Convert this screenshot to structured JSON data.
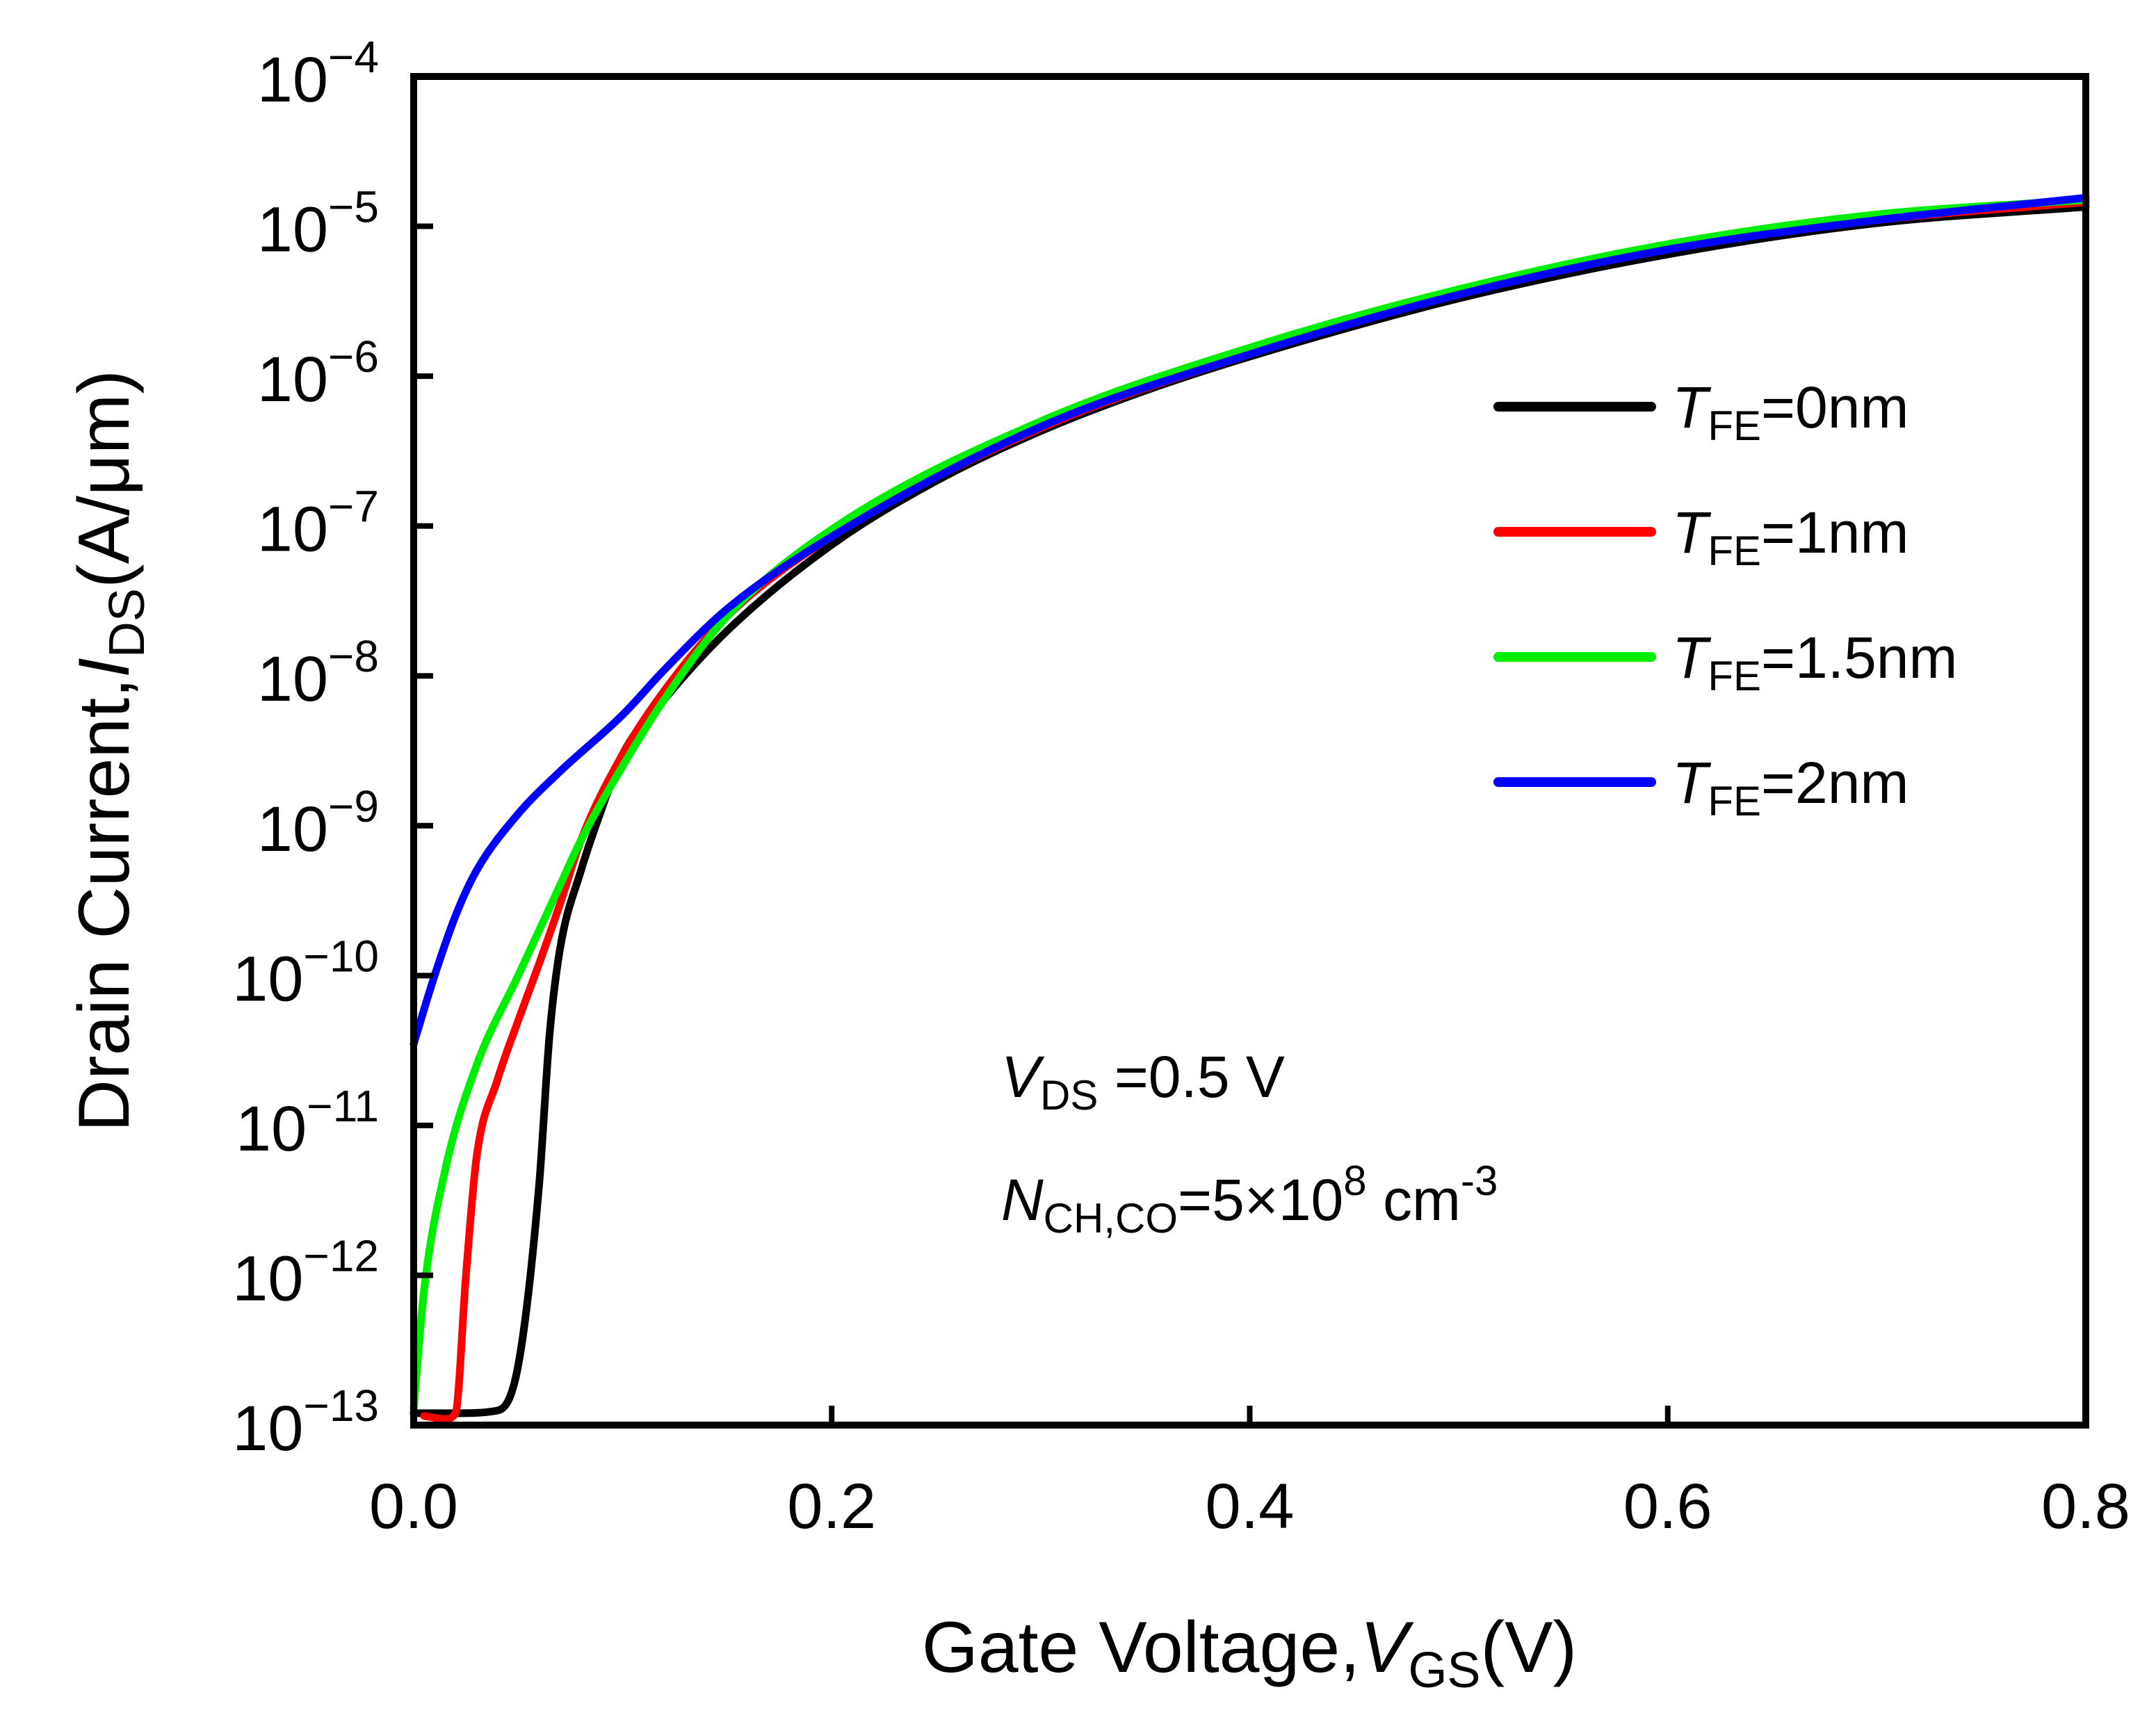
{
  "chart_data": {
    "type": "line",
    "xlabel": "Gate Voltage,",
    "xlabel_var": "V",
    "xlabel_sub": "GS",
    "xlabel_unit": "(V)",
    "ylabel": "Drain Current,",
    "ylabel_var": "I",
    "ylabel_sub": "DS",
    "ylabel_unit": "(A/μm)",
    "xlim": [
      0,
      0.8
    ],
    "ylim": [
      1e-13,
      0.0001
    ],
    "yscale": "log",
    "grid": false,
    "legend_position": "top-right",
    "x_ticks": [
      {
        "value": 0.0,
        "label": "0.0"
      },
      {
        "value": 0.2,
        "label": "0.2"
      },
      {
        "value": 0.4,
        "label": "0.4"
      },
      {
        "value": 0.6,
        "label": "0.6"
      },
      {
        "value": 0.8,
        "label": "0.8"
      }
    ],
    "y_ticks": [
      {
        "exp": -4,
        "base": "10",
        "sup": "−4"
      },
      {
        "exp": -5,
        "base": "10",
        "sup": "−5"
      },
      {
        "exp": -6,
        "base": "10",
        "sup": "−6"
      },
      {
        "exp": -7,
        "base": "10",
        "sup": "−7"
      },
      {
        "exp": -8,
        "base": "10",
        "sup": "−8"
      },
      {
        "exp": -9,
        "base": "10",
        "sup": "−9"
      },
      {
        "exp": -10,
        "base": "10",
        "sup": "−10"
      },
      {
        "exp": -11,
        "base": "10",
        "sup": "−11"
      },
      {
        "exp": -12,
        "base": "10",
        "sup": "−12"
      },
      {
        "exp": -13,
        "base": "10",
        "sup": "−13"
      }
    ],
    "series": [
      {
        "name_var": "T",
        "name_sub": "FE",
        "name_rest": "=0nm",
        "color": "#000000",
        "points": [
          [
            0.0,
            1.2e-13
          ],
          [
            0.02,
            1.2e-13
          ],
          [
            0.04,
            1.25e-13
          ],
          [
            0.05,
            2.5e-13
          ],
          [
            0.06,
            4e-12
          ],
          [
            0.065,
            4e-11
          ],
          [
            0.07,
            1.5e-10
          ],
          [
            0.08,
            5e-10
          ],
          [
            0.09,
            1.3e-09
          ],
          [
            0.1,
            3e-09
          ],
          [
            0.12,
            7e-09
          ],
          [
            0.15,
            2e-08
          ],
          [
            0.2,
            7.5e-08
          ],
          [
            0.25,
            2e-07
          ],
          [
            0.3,
            4.3e-07
          ],
          [
            0.35,
            8e-07
          ],
          [
            0.4,
            1.35e-06
          ],
          [
            0.5,
            3.3e-06
          ],
          [
            0.6,
            6.5e-06
          ],
          [
            0.7,
            1.05e-05
          ],
          [
            0.8,
            1.35e-05
          ]
        ]
      },
      {
        "name_var": "T",
        "name_sub": "FE",
        "name_rest": "=1nm",
        "color": "#ff0000",
        "points": [
          [
            0.005,
            1.15e-13
          ],
          [
            0.015,
            1.1e-13
          ],
          [
            0.02,
            1.2e-13
          ],
          [
            0.025,
            1e-12
          ],
          [
            0.03,
            6e-12
          ],
          [
            0.04,
            2e-11
          ],
          [
            0.05,
            5e-11
          ],
          [
            0.06,
            1.2e-10
          ],
          [
            0.07,
            3e-10
          ],
          [
            0.08,
            8e-10
          ],
          [
            0.1,
            3e-09
          ],
          [
            0.12,
            8e-09
          ],
          [
            0.15,
            2.5e-08
          ],
          [
            0.2,
            8.5e-08
          ],
          [
            0.3,
            4.5e-07
          ],
          [
            0.4,
            1.4e-06
          ],
          [
            0.5,
            3.5e-06
          ],
          [
            0.6,
            7e-06
          ],
          [
            0.7,
            1.1e-05
          ],
          [
            0.8,
            1.45e-05
          ]
        ]
      },
      {
        "name_var": "T",
        "name_sub": "FE",
        "name_rest": "=1.5nm",
        "color": "#00ee00",
        "points": [
          [
            0.0,
            1.3e-13
          ],
          [
            0.005,
            8e-13
          ],
          [
            0.015,
            5e-12
          ],
          [
            0.03,
            2.5e-11
          ],
          [
            0.05,
            1e-10
          ],
          [
            0.07,
            4e-10
          ],
          [
            0.08,
            8e-10
          ],
          [
            0.1,
            2.5e-09
          ],
          [
            0.12,
            7e-09
          ],
          [
            0.15,
            2.5e-08
          ],
          [
            0.2,
            9.5e-08
          ],
          [
            0.3,
            5e-07
          ],
          [
            0.4,
            1.55e-06
          ],
          [
            0.5,
            3.8e-06
          ],
          [
            0.6,
            7.6e-06
          ],
          [
            0.7,
            1.2e-05
          ],
          [
            0.8,
            1.5e-05
          ]
        ]
      },
      {
        "name_var": "T",
        "name_sub": "FE",
        "name_rest": "=2nm",
        "color": "#0000ff",
        "points": [
          [
            0.0,
            3.5e-11
          ],
          [
            0.01,
            1e-10
          ],
          [
            0.02,
            2.5e-10
          ],
          [
            0.03,
            5e-10
          ],
          [
            0.05,
            1.2e-09
          ],
          [
            0.07,
            2.3e-09
          ],
          [
            0.1,
            5.5e-09
          ],
          [
            0.12,
            1.1e-08
          ],
          [
            0.15,
            2.8e-08
          ],
          [
            0.2,
            8.5e-08
          ],
          [
            0.3,
            4.6e-07
          ],
          [
            0.4,
            1.4e-06
          ],
          [
            0.5,
            3.5e-06
          ],
          [
            0.6,
            7e-06
          ],
          [
            0.7,
            1.1e-05
          ],
          [
            0.8,
            1.55e-05
          ]
        ]
      }
    ],
    "annotations": {
      "vds_var": "V",
      "vds_sub": "DS",
      "vds_rest": " =0.5 V",
      "nch_var": "N",
      "nch_sub": "CH,CO",
      "nch_rest": "=5×10",
      "nch_sup": "8",
      "nch_unit": " cm",
      "nch_unit_sup": "-3"
    }
  }
}
